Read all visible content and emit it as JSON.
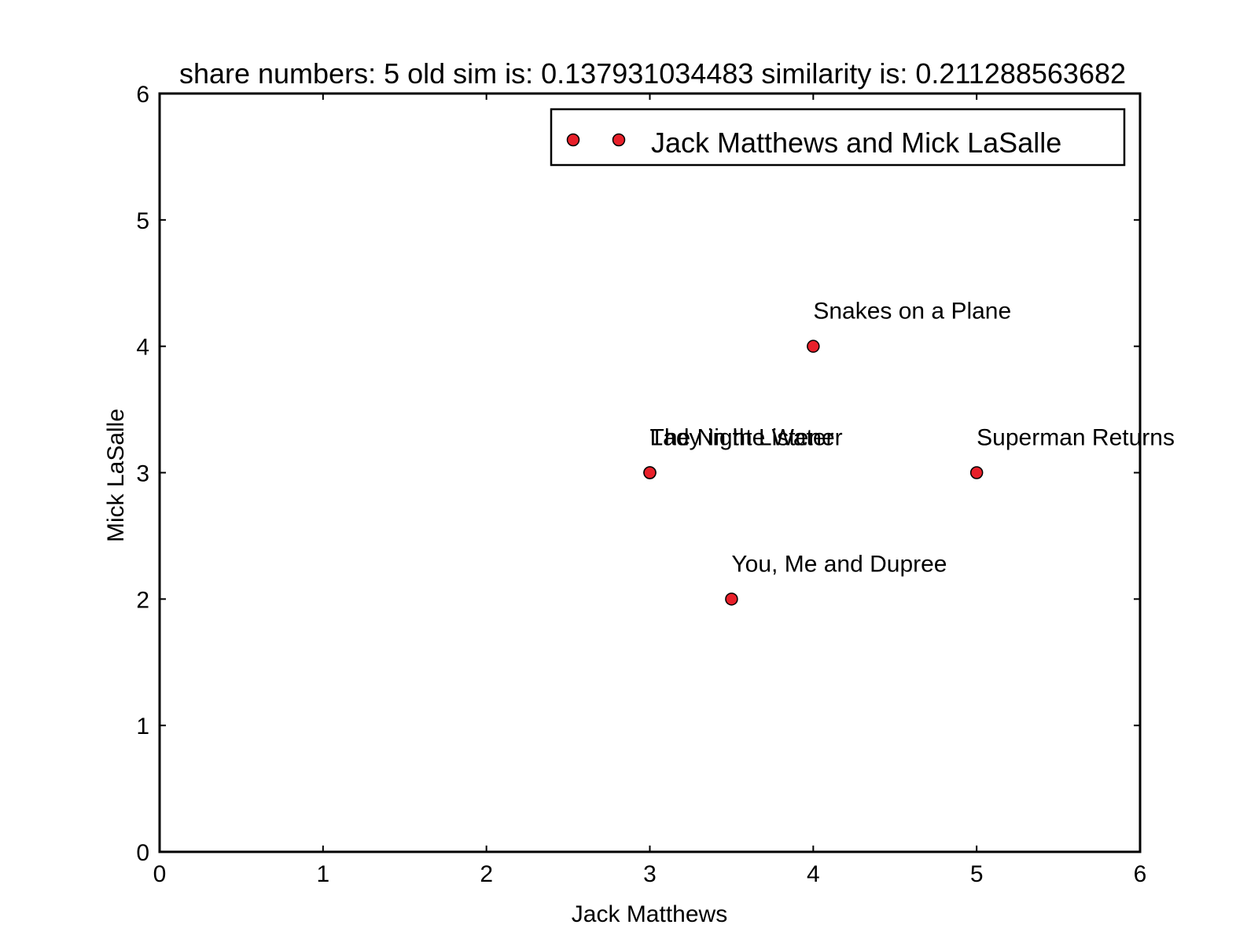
{
  "chart_data": {
    "type": "scatter",
    "title": "share numbers: 5 old sim is: 0.137931034483 similarity is: 0.211288563682",
    "xlabel": "Jack Matthews",
    "ylabel": "Mick LaSalle",
    "xlim": [
      0,
      6
    ],
    "ylim": [
      0,
      6
    ],
    "xticks": [
      "0",
      "1",
      "2",
      "3",
      "4",
      "5",
      "6"
    ],
    "yticks": [
      "0",
      "1",
      "2",
      "3",
      "4",
      "5",
      "6"
    ],
    "grid": false,
    "legend": {
      "placement": "top-right",
      "entries": [
        "Jack Matthews and Mick LaSalle"
      ]
    },
    "series": [
      {
        "name": "Jack Matthews and Mick LaSalle",
        "color": "#e8202a",
        "points": [
          {
            "x": 3,
            "y": 3,
            "label": "Lady in the Water"
          },
          {
            "x": 3,
            "y": 3,
            "label": "The Night Listener"
          },
          {
            "x": 4,
            "y": 4,
            "label": "Snakes on a Plane"
          },
          {
            "x": 5,
            "y": 3,
            "label": "Superman Returns"
          },
          {
            "x": 3.5,
            "y": 2,
            "label": "You, Me and Dupree"
          }
        ]
      }
    ]
  }
}
